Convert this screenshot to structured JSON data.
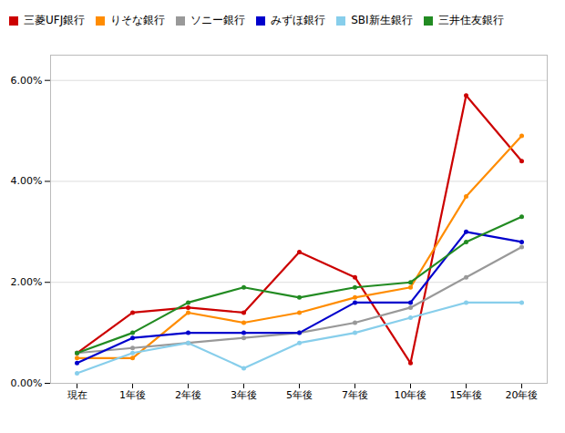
{
  "chart_data": {
    "type": "line",
    "categories": [
      "現在",
      "1年後",
      "2年後",
      "3年後",
      "5年後",
      "7年後",
      "10年後",
      "15年後",
      "20年後"
    ],
    "series": [
      {
        "name": "三菱UFJ銀行",
        "color": "#cc0000",
        "values": [
          0.006,
          0.014,
          0.015,
          0.014,
          0.026,
          0.021,
          0.004,
          0.057,
          0.044
        ]
      },
      {
        "name": "りそな銀行",
        "color": "#ff8c00",
        "values": [
          0.005,
          0.005,
          0.014,
          0.012,
          0.014,
          0.017,
          0.019,
          0.037,
          0.049
        ]
      },
      {
        "name": "ソニー銀行",
        "color": "#999999",
        "values": [
          0.006,
          0.007,
          0.008,
          0.009,
          0.01,
          0.012,
          0.015,
          0.021,
          0.027
        ]
      },
      {
        "name": "みずほ銀行",
        "color": "#0000cc",
        "values": [
          0.004,
          0.009,
          0.01,
          0.01,
          0.01,
          0.016,
          0.016,
          0.03,
          0.028
        ]
      },
      {
        "name": "SBI新生銀行",
        "color": "#87ceeb",
        "values": [
          0.002,
          0.006,
          0.008,
          0.003,
          0.008,
          0.01,
          0.013,
          0.016,
          0.016
        ]
      },
      {
        "name": "三井住友銀行",
        "color": "#228b22",
        "values": [
          0.006,
          0.01,
          0.016,
          0.019,
          0.017,
          0.019,
          0.02,
          0.028,
          0.033
        ]
      }
    ],
    "ylim": [
      0.0,
      0.065
    ],
    "yticks": [
      {
        "value": 0.0,
        "label": "0.00%"
      },
      {
        "value": 0.02,
        "label": "2.00%"
      },
      {
        "value": 0.04,
        "label": "4.00%"
      },
      {
        "value": 0.06,
        "label": "6.00%"
      }
    ],
    "grid": true,
    "legend": "top",
    "marker": "circle"
  }
}
